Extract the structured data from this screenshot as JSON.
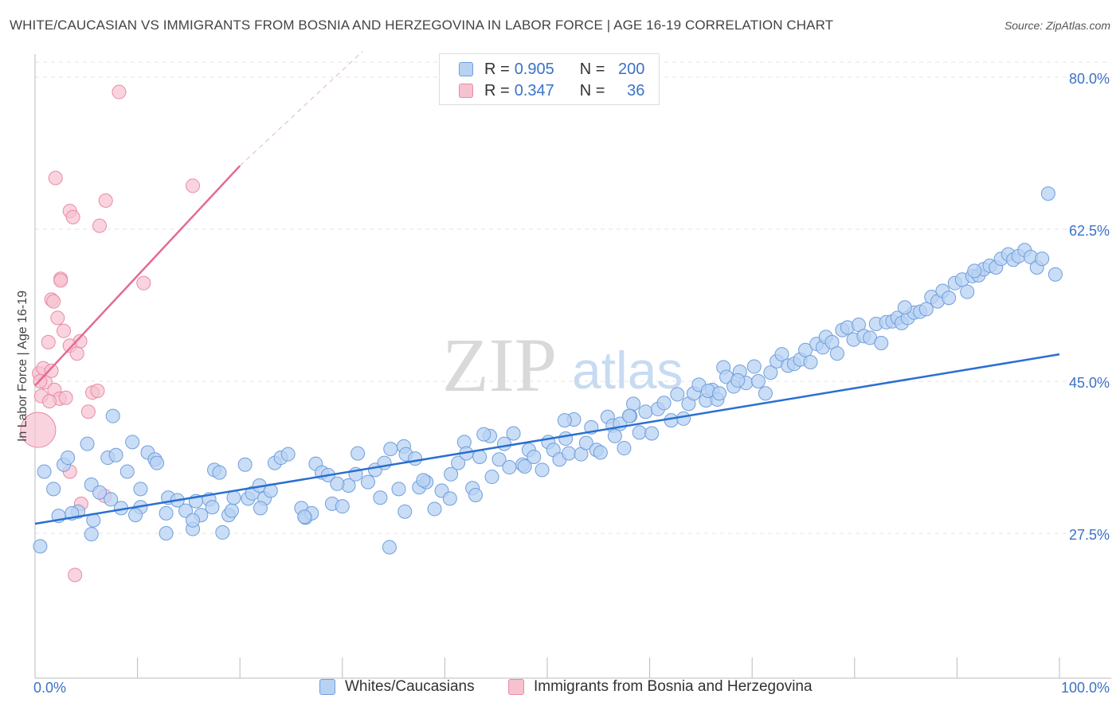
{
  "title": "WHITE/CAUCASIAN VS IMMIGRANTS FROM BOSNIA AND HERZEGOVINA IN LABOR FORCE | AGE 16-19 CORRELATION CHART",
  "source": "Source: ZipAtlas.com",
  "watermark": {
    "zip": "ZIP",
    "atlas": "atlas"
  },
  "legend": {
    "r_label": "R =",
    "n_label": "N =",
    "rows": [
      {
        "r": "0.905",
        "n": "200",
        "color": "#a9c8f0"
      },
      {
        "r": "0.347",
        "n": "36",
        "color": "#f6b6c8"
      }
    ]
  },
  "colors": {
    "blue_fill": "#b8d2f3",
    "blue_stroke": "#6f9fdc",
    "blue_line": "#2a6fd0",
    "pink_fill": "#f7c2d0",
    "pink_stroke": "#e88aa6",
    "pink_line": "#e46a92",
    "tick_label": "#3a72c9",
    "grid": "#e3e3e3"
  },
  "chart_data": {
    "type": "scatter",
    "title": "WHITE/CAUCASIAN VS IMMIGRANTS FROM BOSNIA AND HERZEGOVINA IN LABOR FORCE | AGE 16-19 CORRELATION CHART",
    "xlabel": "",
    "ylabel": "In Labor Force | Age 16-19",
    "xlim": [
      0,
      100
    ],
    "ylim": [
      10,
      83
    ],
    "x_tick_labels": [
      "0.0%",
      "100.0%"
    ],
    "y_ticks": [
      27.5,
      45.0,
      62.5,
      80.0
    ],
    "y_tick_labels": [
      "27.5%",
      "45.0%",
      "62.5%",
      "80.0%"
    ],
    "grid": true,
    "legend_position": "top-center",
    "series": [
      {
        "name": "Whites/Caucasians",
        "r": 0.905,
        "n": 200,
        "trend": {
          "x": [
            0,
            100
          ],
          "y": [
            28.6,
            48.1
          ]
        },
        "points": [
          [
            0.5,
            26.0
          ],
          [
            0.9,
            34.6
          ],
          [
            1.8,
            32.6
          ],
          [
            2.3,
            29.5
          ],
          [
            2.8,
            35.4
          ],
          [
            3.2,
            36.2
          ],
          [
            4.2,
            30.0
          ],
          [
            5.1,
            37.8
          ],
          [
            5.5,
            33.1
          ],
          [
            5.5,
            27.4
          ],
          [
            6.3,
            32.2
          ],
          [
            7.1,
            36.2
          ],
          [
            7.4,
            31.4
          ],
          [
            7.6,
            41.0
          ],
          [
            7.9,
            36.5
          ],
          [
            8.4,
            30.4
          ],
          [
            9.0,
            34.6
          ],
          [
            9.5,
            38.0
          ],
          [
            10.3,
            32.6
          ],
          [
            10.3,
            30.5
          ],
          [
            11.0,
            36.8
          ],
          [
            11.7,
            36.0
          ],
          [
            12.8,
            29.8
          ],
          [
            12.8,
            27.5
          ],
          [
            13.0,
            31.6
          ],
          [
            13.9,
            31.3
          ],
          [
            14.7,
            30.1
          ],
          [
            15.4,
            28.0
          ],
          [
            15.7,
            31.2
          ],
          [
            16.2,
            29.6
          ],
          [
            17.0,
            31.4
          ],
          [
            17.3,
            30.5
          ],
          [
            17.5,
            34.8
          ],
          [
            18.0,
            34.5
          ],
          [
            18.9,
            29.6
          ],
          [
            19.2,
            30.1
          ],
          [
            19.4,
            31.6
          ],
          [
            20.5,
            35.4
          ],
          [
            20.8,
            31.5
          ],
          [
            21.2,
            32.1
          ],
          [
            21.9,
            33.0
          ],
          [
            22.4,
            31.5
          ],
          [
            23.0,
            32.4
          ],
          [
            23.4,
            35.6
          ],
          [
            24.0,
            36.2
          ],
          [
            24.7,
            36.6
          ],
          [
            26.0,
            30.4
          ],
          [
            26.4,
            29.3
          ],
          [
            27.0,
            29.8
          ],
          [
            27.4,
            35.5
          ],
          [
            28.0,
            34.5
          ],
          [
            28.6,
            34.2
          ],
          [
            29.0,
            30.9
          ],
          [
            30.0,
            30.6
          ],
          [
            30.6,
            33.0
          ],
          [
            31.3,
            34.3
          ],
          [
            31.5,
            36.7
          ],
          [
            32.5,
            33.4
          ],
          [
            33.2,
            34.8
          ],
          [
            33.7,
            31.6
          ],
          [
            34.1,
            35.6
          ],
          [
            34.7,
            37.2
          ],
          [
            35.5,
            32.6
          ],
          [
            36.0,
            37.5
          ],
          [
            36.2,
            36.6
          ],
          [
            37.1,
            36.1
          ],
          [
            37.5,
            32.8
          ],
          [
            38.2,
            33.4
          ],
          [
            39.0,
            30.3
          ],
          [
            39.7,
            32.4
          ],
          [
            40.6,
            34.3
          ],
          [
            41.3,
            35.6
          ],
          [
            41.9,
            38.0
          ],
          [
            42.1,
            36.7
          ],
          [
            42.7,
            32.7
          ],
          [
            43.0,
            31.9
          ],
          [
            43.4,
            36.3
          ],
          [
            44.4,
            38.7
          ],
          [
            44.6,
            34.0
          ],
          [
            45.3,
            36.0
          ],
          [
            45.8,
            37.8
          ],
          [
            46.3,
            35.1
          ],
          [
            46.7,
            39.0
          ],
          [
            47.6,
            35.4
          ],
          [
            48.2,
            37.1
          ],
          [
            48.7,
            36.3
          ],
          [
            49.5,
            34.8
          ],
          [
            50.1,
            38.0
          ],
          [
            50.6,
            37.1
          ],
          [
            51.2,
            36.0
          ],
          [
            51.8,
            38.4
          ],
          [
            52.1,
            36.7
          ],
          [
            52.6,
            40.6
          ],
          [
            53.3,
            36.6
          ],
          [
            53.8,
            37.9
          ],
          [
            54.3,
            39.7
          ],
          [
            54.8,
            37.1
          ],
          [
            55.2,
            36.8
          ],
          [
            55.9,
            40.9
          ],
          [
            56.4,
            39.9
          ],
          [
            57.1,
            40.1
          ],
          [
            57.5,
            37.3
          ],
          [
            58.4,
            42.4
          ],
          [
            59.0,
            39.1
          ],
          [
            59.6,
            41.5
          ],
          [
            60.2,
            39.0
          ],
          [
            60.8,
            41.8
          ],
          [
            61.4,
            42.5
          ],
          [
            62.1,
            40.5
          ],
          [
            62.7,
            43.5
          ],
          [
            63.3,
            40.7
          ],
          [
            63.8,
            42.4
          ],
          [
            64.3,
            43.6
          ],
          [
            64.8,
            44.6
          ],
          [
            65.5,
            42.8
          ],
          [
            66.1,
            44.0
          ],
          [
            66.6,
            42.9
          ],
          [
            67.2,
            46.6
          ],
          [
            67.5,
            45.5
          ],
          [
            68.2,
            44.4
          ],
          [
            68.8,
            46.1
          ],
          [
            69.4,
            44.8
          ],
          [
            70.2,
            46.7
          ],
          [
            70.6,
            45.0
          ],
          [
            71.3,
            43.6
          ],
          [
            71.8,
            46.0
          ],
          [
            72.4,
            47.3
          ],
          [
            72.9,
            48.1
          ],
          [
            73.5,
            46.8
          ],
          [
            74.1,
            47.0
          ],
          [
            74.7,
            47.5
          ],
          [
            75.2,
            48.6
          ],
          [
            75.7,
            47.2
          ],
          [
            76.3,
            49.3
          ],
          [
            76.9,
            48.9
          ],
          [
            77.2,
            50.1
          ],
          [
            77.8,
            49.5
          ],
          [
            78.3,
            48.2
          ],
          [
            78.8,
            50.9
          ],
          [
            79.3,
            51.2
          ],
          [
            79.9,
            49.8
          ],
          [
            80.4,
            51.5
          ],
          [
            80.9,
            50.2
          ],
          [
            81.5,
            50.0
          ],
          [
            82.1,
            51.6
          ],
          [
            82.6,
            49.4
          ],
          [
            83.1,
            51.8
          ],
          [
            83.7,
            51.9
          ],
          [
            84.2,
            52.3
          ],
          [
            84.6,
            51.7
          ],
          [
            85.2,
            52.3
          ],
          [
            85.8,
            52.9
          ],
          [
            86.4,
            53.0
          ],
          [
            87.0,
            53.3
          ],
          [
            87.5,
            54.7
          ],
          [
            88.1,
            54.2
          ],
          [
            88.6,
            55.4
          ],
          [
            89.2,
            54.6
          ],
          [
            89.8,
            56.3
          ],
          [
            90.5,
            56.7
          ],
          [
            91.0,
            55.3
          ],
          [
            91.5,
            57.1
          ],
          [
            92.1,
            57.2
          ],
          [
            92.6,
            57.9
          ],
          [
            93.2,
            58.3
          ],
          [
            93.8,
            58.1
          ],
          [
            94.3,
            59.1
          ],
          [
            95.0,
            59.6
          ],
          [
            95.5,
            59.0
          ],
          [
            96.0,
            59.4
          ],
          [
            96.6,
            60.1
          ],
          [
            97.2,
            59.3
          ],
          [
            97.8,
            58.1
          ],
          [
            98.3,
            59.1
          ],
          [
            98.9,
            66.6
          ],
          [
            3.6,
            29.8
          ],
          [
            26.3,
            29.4
          ],
          [
            40.5,
            31.5
          ],
          [
            37.9,
            33.6
          ],
          [
            36.1,
            30.0
          ],
          [
            47.8,
            35.2
          ],
          [
            34.6,
            25.9
          ],
          [
            29.5,
            33.2
          ],
          [
            15.4,
            29.0
          ],
          [
            9.8,
            29.6
          ],
          [
            5.7,
            29.0
          ],
          [
            43.8,
            38.9
          ],
          [
            58.1,
            41.0
          ],
          [
            68.6,
            45.1
          ],
          [
            99.6,
            57.3
          ],
          [
            22.0,
            30.4
          ],
          [
            18.3,
            27.6
          ],
          [
            11.9,
            35.6
          ],
          [
            84.9,
            53.5
          ],
          [
            91.7,
            57.7
          ],
          [
            65.7,
            43.9
          ],
          [
            58.0,
            41.0
          ],
          [
            51.7,
            40.5
          ],
          [
            56.6,
            38.7
          ],
          [
            66.8,
            43.6
          ]
        ]
      },
      {
        "name": "Immigrants from Bosnia and Herzegovina",
        "r": 0.347,
        "n": 36,
        "trend": {
          "x": [
            0,
            20
          ],
          "y": [
            44.5,
            69.8
          ],
          "dash_to": [
            32,
            83
          ]
        },
        "points": [
          [
            8.2,
            78.3
          ],
          [
            2.0,
            68.4
          ],
          [
            15.4,
            67.5
          ],
          [
            6.9,
            65.8
          ],
          [
            3.4,
            64.6
          ],
          [
            3.7,
            63.9
          ],
          [
            6.3,
            62.9
          ],
          [
            2.5,
            56.8
          ],
          [
            2.5,
            56.6
          ],
          [
            10.6,
            56.3
          ],
          [
            1.6,
            54.4
          ],
          [
            1.8,
            54.2
          ],
          [
            2.2,
            52.3
          ],
          [
            2.8,
            50.8
          ],
          [
            1.3,
            49.5
          ],
          [
            4.4,
            49.6
          ],
          [
            3.4,
            49.1
          ],
          [
            0.4,
            45.9
          ],
          [
            4.1,
            48.2
          ],
          [
            0.8,
            46.5
          ],
          [
            1.0,
            44.9
          ],
          [
            1.6,
            46.2
          ],
          [
            1.9,
            44.0
          ],
          [
            0.5,
            45.0
          ],
          [
            5.6,
            43.7
          ],
          [
            6.1,
            43.9
          ],
          [
            0.6,
            43.3
          ],
          [
            2.4,
            43.0
          ],
          [
            1.4,
            42.7
          ],
          [
            3.0,
            43.1
          ],
          [
            5.2,
            41.5
          ],
          [
            3.4,
            34.6
          ],
          [
            6.8,
            31.8
          ],
          [
            4.5,
            30.9
          ],
          [
            0.3,
            39.4
          ],
          [
            3.9,
            22.7
          ]
        ]
      }
    ]
  }
}
